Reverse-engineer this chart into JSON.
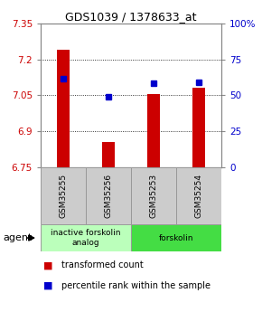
{
  "title": "GDS1039 / 1378633_at",
  "samples": [
    "GSM35255",
    "GSM35256",
    "GSM35253",
    "GSM35254"
  ],
  "bar_values": [
    7.24,
    6.855,
    7.055,
    7.08
  ],
  "bar_baseline": 6.75,
  "dot_values": [
    7.12,
    7.045,
    7.1,
    7.105
  ],
  "ylim": [
    6.75,
    7.35
  ],
  "yticks_left": [
    7.35,
    7.2,
    7.05,
    6.9,
    6.75
  ],
  "yticks_right_vals": [
    100,
    75,
    50,
    25,
    0
  ],
  "yticks_right_pos": [
    7.35,
    7.2,
    7.05,
    6.9,
    6.75
  ],
  "bar_color": "#cc0000",
  "dot_color": "#0000cc",
  "agent_groups": [
    {
      "label": "inactive forskolin\nanalog",
      "cols": [
        0,
        1
      ],
      "color": "#bbffbb",
      "border": "#999999"
    },
    {
      "label": "forskolin",
      "cols": [
        2,
        3
      ],
      "color": "#44dd44",
      "border": "#999999"
    }
  ],
  "sample_bg": "#cccccc",
  "xlabel_color": "#cc0000",
  "ylabel_right_color": "#0000cc",
  "background_color": "#ffffff",
  "legend_items": [
    {
      "color": "#cc0000",
      "label": "transformed count"
    },
    {
      "color": "#0000cc",
      "label": "percentile rank within the sample"
    }
  ]
}
